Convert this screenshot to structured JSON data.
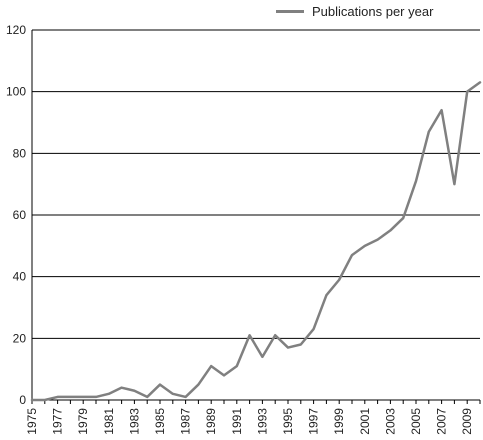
{
  "chart_data": {
    "type": "line",
    "x": [
      1975,
      1976,
      1977,
      1978,
      1979,
      1980,
      1981,
      1982,
      1983,
      1984,
      1985,
      1986,
      1987,
      1988,
      1989,
      1990,
      1991,
      1992,
      1993,
      1994,
      1995,
      1996,
      1997,
      1998,
      1999,
      2000,
      2001,
      2002,
      2003,
      2004,
      2005,
      2006,
      2007,
      2008,
      2009,
      2010
    ],
    "series": [
      {
        "name": "Publications per year",
        "values": [
          0,
          0,
          1,
          1,
          1,
          1,
          2,
          4,
          3,
          1,
          5,
          2,
          1,
          5,
          11,
          8,
          11,
          21,
          14,
          21,
          17,
          18,
          23,
          34,
          39,
          47,
          50,
          52,
          55,
          59,
          71,
          87,
          94,
          70,
          100,
          103
        ]
      }
    ],
    "xticks": [
      "1975",
      "1977",
      "1979",
      "1981",
      "1983",
      "1985",
      "1987",
      "1989",
      "1991",
      "1993",
      "1995",
      "1997",
      "1999",
      "2001",
      "2003",
      "2005",
      "2007",
      "2009"
    ],
    "yticks": [
      "0",
      "20",
      "40",
      "60",
      "80",
      "100",
      "120"
    ],
    "ylim": [
      0,
      120
    ],
    "xlim": [
      1975,
      2010
    ],
    "grid": "horizontal",
    "legend_position": "top-right",
    "line_color": "#808080",
    "title": "",
    "xlabel": "",
    "ylabel": ""
  }
}
